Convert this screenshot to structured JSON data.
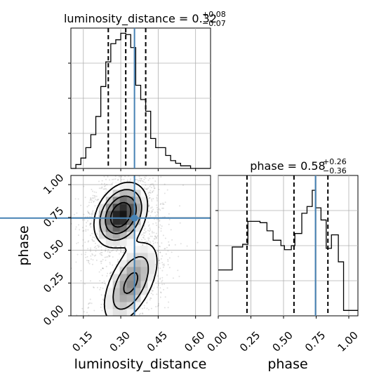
{
  "chart_data": {
    "type": "corner",
    "truth_color": "#4682b4",
    "parameters": [
      {
        "name": "luminosity_distance",
        "label": "luminosity_distance",
        "range": [
          0.1,
          0.66
        ],
        "ticks": [
          0.15,
          0.3,
          0.45,
          0.6
        ],
        "tick_labels": [
          "0.15",
          "0.30",
          "0.45",
          "0.60"
        ],
        "truth": 0.355,
        "quantiles": [
          0.25,
          0.32,
          0.4
        ],
        "title": {
          "prefix": "luminosity_distance = 0.32",
          "plus": "+0.08",
          "minus": "−0.07"
        },
        "histogram": {
          "edges": [
            0.1,
            0.12,
            0.14,
            0.16,
            0.18,
            0.2,
            0.22,
            0.24,
            0.26,
            0.28,
            0.3,
            0.32,
            0.34,
            0.36,
            0.38,
            0.4,
            0.42,
            0.44,
            0.46,
            0.48,
            0.5,
            0.52,
            0.54,
            0.56,
            0.58,
            0.6,
            0.62,
            0.64,
            0.66
          ],
          "counts": [
            0,
            3,
            8,
            16,
            26,
            40,
            63,
            82,
            96,
            99,
            104,
            103,
            93,
            64,
            53,
            44,
            23,
            16,
            16,
            10,
            6,
            4,
            2,
            2,
            0,
            0,
            0,
            0
          ],
          "ymax": 108
        }
      },
      {
        "name": "phase",
        "label": "phase",
        "range": [
          0.0,
          1.07
        ],
        "ticks": [
          0.0,
          0.25,
          0.5,
          0.75,
          1.0
        ],
        "tick_labels": [
          "0.00",
          "0.25",
          "0.50",
          "0.75",
          "1.00"
        ],
        "truth": 0.745,
        "quantiles": [
          0.22,
          0.58,
          0.84
        ],
        "title": {
          "prefix": "phase = 0.58",
          "plus": "+0.26",
          "minus": "−0.36"
        },
        "histogram": {
          "edges": [
            0.0,
            0.107,
            0.187,
            0.227,
            0.32,
            0.373,
            0.42,
            0.48,
            0.507,
            0.56,
            0.587,
            0.64,
            0.68,
            0.72,
            0.747,
            0.787,
            0.827,
            0.867,
            0.92,
            0.96,
            1.013,
            1.07
          ],
          "counts": [
            34,
            51,
            53,
            70,
            69,
            63,
            56,
            52,
            49,
            52,
            61,
            76,
            81,
            93,
            80,
            71,
            50,
            60,
            40,
            4,
            4
          ],
          "ymax": 104
        }
      }
    ],
    "joint": {
      "x": "luminosity_distance",
      "y": "phase",
      "point": [
        0.355,
        0.745
      ],
      "modes": [
        {
          "cx": 0.3,
          "cy": 0.77,
          "sx": 0.052,
          "sy": 0.12,
          "rho": 0.3,
          "weight": 1.0
        },
        {
          "cx": 0.34,
          "cy": 0.25,
          "sx": 0.06,
          "sy": 0.17,
          "rho": 0.55,
          "weight": 0.55
        }
      ],
      "contour_levels": [
        0.12,
        0.28,
        0.5,
        0.75
      ]
    }
  }
}
